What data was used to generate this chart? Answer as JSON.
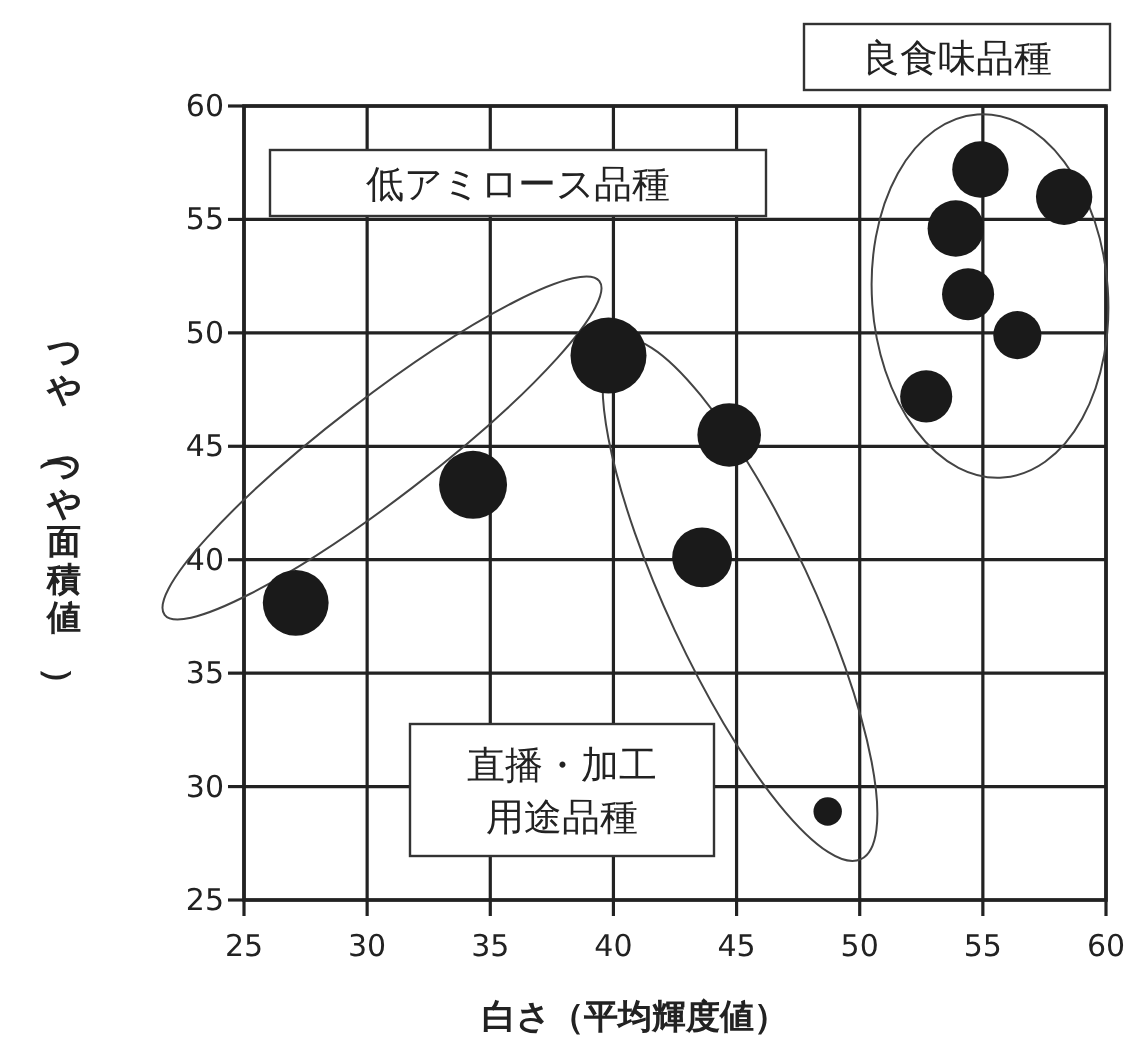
{
  "chart_data": {
    "type": "bubble",
    "xlabel": "白さ（平均輝度値）",
    "ylabel": "つや（つや面積値）",
    "x": [
      27.1,
      34.3,
      39.8,
      43.6,
      44.7,
      48.7,
      52.7,
      53.9,
      54.4,
      54.9,
      56.4,
      58.3
    ],
    "values": [
      38.1,
      43.3,
      49.0,
      40.1,
      45.5,
      28.9,
      47.2,
      54.6,
      51.7,
      57.2,
      49.9,
      56.0
    ],
    "sizes": [
      0.75,
      0.8,
      1,
      0.62,
      0.7,
      0.14,
      0.47,
      0.55,
      0.47,
      0.55,
      0.4,
      0.55
    ],
    "color": "#1a1a1a",
    "marker": "circle",
    "xlim": [
      25,
      60
    ],
    "xticks": [
      25,
      30,
      35,
      40,
      45,
      50,
      55,
      60
    ],
    "ylim": [
      25,
      60
    ],
    "yticks": [
      25,
      30,
      35,
      40,
      45,
      50,
      55,
      60
    ],
    "grid": true,
    "annotations": [
      "良食味品種",
      "低アミロース品種",
      "直播・加工用途品種"
    ]
  }
}
